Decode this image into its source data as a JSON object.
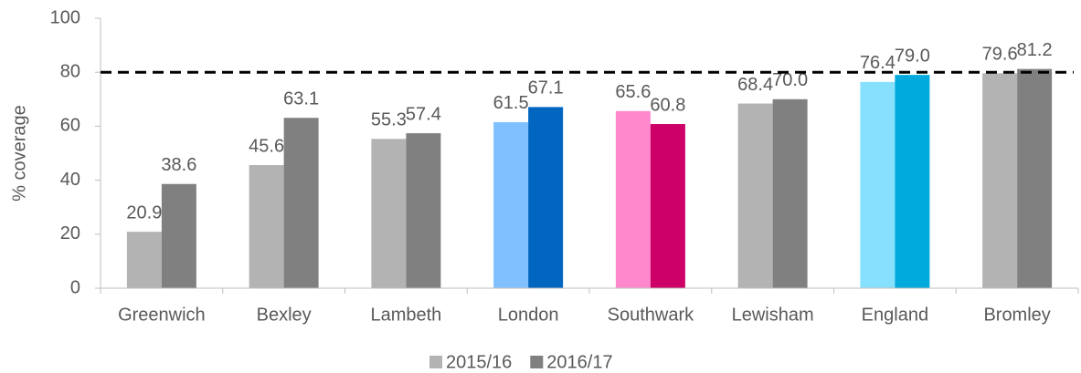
{
  "chart_data": {
    "type": "bar",
    "y_axis_label": "% coverage",
    "categories": [
      "Greenwich",
      "Bexley",
      "Lambeth",
      "London",
      "Southwark",
      "Lewisham",
      "England",
      "Bromley"
    ],
    "series": [
      {
        "name": "2015/16",
        "color": "#b3b3b3",
        "colors": [
          "#b3b3b3",
          "#b3b3b3",
          "#b3b3b3",
          "#80c0ff",
          "#ff88cc",
          "#b3b3b3",
          "#88e0ff",
          "#b3b3b3"
        ],
        "values": [
          20.9,
          45.6,
          55.3,
          61.5,
          65.6,
          68.4,
          76.4,
          79.6
        ],
        "value_labels": [
          "20.9",
          "45.6",
          "55.3",
          "61.5",
          "65.6",
          "68.4",
          "76.4",
          "79.6"
        ]
      },
      {
        "name": "2016/17",
        "color": "#808080",
        "colors": [
          "#808080",
          "#808080",
          "#808080",
          "#0066bf",
          "#cc0066",
          "#808080",
          "#00aadd",
          "#808080"
        ],
        "values": [
          38.6,
          63.1,
          57.4,
          67.1,
          60.8,
          70,
          79,
          81.2
        ],
        "value_labels": [
          "38.6",
          "63.1",
          "57.4",
          "67.1",
          "60.8",
          "70.0",
          "79.0",
          "81.2"
        ]
      }
    ],
    "reference_line": 80,
    "ylim": [
      0,
      100
    ],
    "yticks": [
      0,
      20,
      40,
      60,
      80,
      100
    ],
    "grid": false,
    "legend": "bottom"
  }
}
